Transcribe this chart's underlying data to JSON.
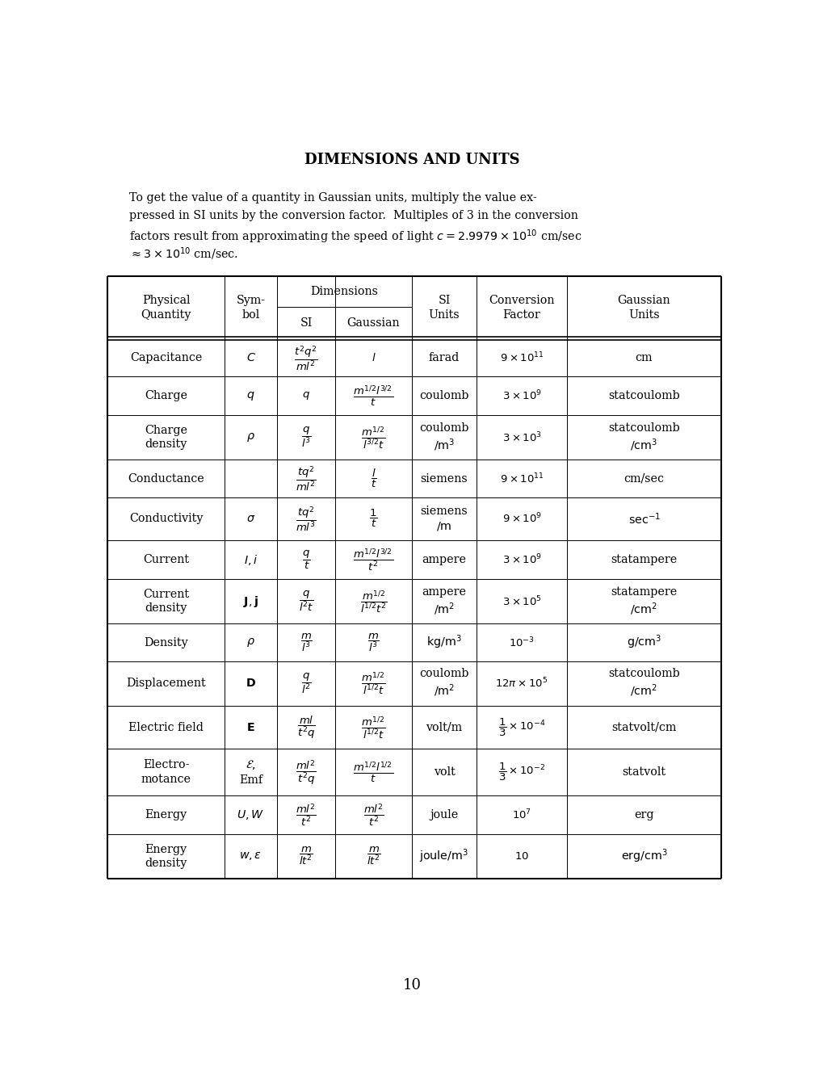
{
  "title": "DIMENSIONS AND UNITS",
  "bg_color": "#ffffff",
  "text_color": "#000000",
  "page_number": "10",
  "rows": [
    {
      "name": "Capacitance",
      "symbol": "$C$",
      "si_dim": "$\\dfrac{t^2q^2}{ml^2}$",
      "gauss_dim": "$l$",
      "si_units": "farad",
      "conv": "$9 \\times 10^{11}$",
      "gauss_units": "cm"
    },
    {
      "name": "Charge",
      "symbol": "$q$",
      "si_dim": "$q$",
      "gauss_dim": "$\\dfrac{m^{1/2}l^{3/2}}{t}$",
      "si_units": "coulomb",
      "conv": "$3 \\times 10^{9}$",
      "gauss_units": "statcoulomb"
    },
    {
      "name": "Charge\ndensity",
      "symbol": "$\\rho$",
      "si_dim": "$\\dfrac{q}{l^3}$",
      "gauss_dim": "$\\dfrac{m^{1/2}}{l^{3/2}t}$",
      "si_units": "coulomb\n$/\\mathrm{m}^3$",
      "conv": "$3 \\times 10^{3}$",
      "gauss_units": "statcoulomb\n$/\\mathrm{cm}^3$"
    },
    {
      "name": "Conductance",
      "symbol": "",
      "si_dim": "$\\dfrac{tq^2}{ml^2}$",
      "gauss_dim": "$\\dfrac{l}{t}$",
      "si_units": "siemens",
      "conv": "$9 \\times 10^{11}$",
      "gauss_units": "cm/sec"
    },
    {
      "name": "Conductivity",
      "symbol": "$\\sigma$",
      "si_dim": "$\\dfrac{tq^2}{ml^3}$",
      "gauss_dim": "$\\dfrac{1}{t}$",
      "si_units": "siemens\n$/\\mathrm{m}$",
      "conv": "$9 \\times 10^{9}$",
      "gauss_units": "$\\mathrm{sec}^{-1}$"
    },
    {
      "name": "Current",
      "symbol": "$I, i$",
      "si_dim": "$\\dfrac{q}{t}$",
      "gauss_dim": "$\\dfrac{m^{1/2}l^{3/2}}{t^2}$",
      "si_units": "ampere",
      "conv": "$3 \\times 10^{9}$",
      "gauss_units": "statampere"
    },
    {
      "name": "Current\ndensity",
      "symbol": "$\\mathbf{J},\\mathbf{j}$",
      "si_dim": "$\\dfrac{q}{l^2t}$",
      "gauss_dim": "$\\dfrac{m^{1/2}}{l^{1/2}t^2}$",
      "si_units": "ampere\n$/\\mathrm{m}^2$",
      "conv": "$3 \\times 10^{5}$",
      "gauss_units": "statampere\n$/\\mathrm{cm}^2$"
    },
    {
      "name": "Density",
      "symbol": "$\\rho$",
      "si_dim": "$\\dfrac{m}{l^3}$",
      "gauss_dim": "$\\dfrac{m}{l^3}$",
      "si_units": "$\\mathrm{kg/m}^3$",
      "conv": "$10^{-3}$",
      "gauss_units": "$\\mathrm{g/cm}^3$"
    },
    {
      "name": "Displacement",
      "symbol": "$\\mathbf{D}$",
      "si_dim": "$\\dfrac{q}{l^2}$",
      "gauss_dim": "$\\dfrac{m^{1/2}}{l^{1/2}t}$",
      "si_units": "coulomb\n$/\\mathrm{m}^2$",
      "conv": "$12\\pi \\times 10^{5}$",
      "gauss_units": "statcoulomb\n$/\\mathrm{cm}^2$"
    },
    {
      "name": "Electric field",
      "symbol": "$\\mathbf{E}$",
      "si_dim": "$\\dfrac{ml}{t^2q}$",
      "gauss_dim": "$\\dfrac{m^{1/2}}{l^{1/2}t}$",
      "si_units": "volt/m",
      "conv": "$\\dfrac{1}{3} \\times 10^{-4}$",
      "gauss_units": "statvolt/cm"
    },
    {
      "name": "Electro-\nmotance",
      "symbol": "$\\mathcal{E},$\nEmf",
      "si_dim": "$\\dfrac{ml^2}{t^2q}$",
      "gauss_dim": "$\\dfrac{m^{1/2}l^{1/2}}{t}$",
      "si_units": "volt",
      "conv": "$\\dfrac{1}{3} \\times 10^{-2}$",
      "gauss_units": "statvolt"
    },
    {
      "name": "Energy",
      "symbol": "$U, W$",
      "si_dim": "$\\dfrac{ml^2}{t^2}$",
      "gauss_dim": "$\\dfrac{ml^2}{t^2}$",
      "si_units": "joule",
      "conv": "$10^{7}$",
      "gauss_units": "erg"
    },
    {
      "name": "Energy\ndensity",
      "symbol": "$w, \\epsilon$",
      "si_dim": "$\\dfrac{m}{lt^2}$",
      "gauss_dim": "$\\dfrac{m}{lt^2}$",
      "si_units": "$\\mathrm{joule/m}^3$",
      "conv": "$10$",
      "gauss_units": "$\\mathrm{erg/cm}^3$"
    }
  ]
}
